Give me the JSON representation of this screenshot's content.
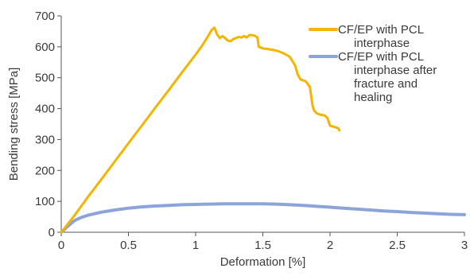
{
  "chart_data": {
    "type": "line",
    "xlabel": "Deformation [%]",
    "ylabel": "Bending stress [MPa]",
    "xlim": [
      0,
      3
    ],
    "ylim": [
      0,
      700
    ],
    "x_ticks": [
      0,
      0.5,
      1,
      1.5,
      2,
      2.5,
      3
    ],
    "x_tick_labels": [
      "0",
      "0.5",
      "1",
      "1.5",
      "2",
      "2.5",
      "3"
    ],
    "y_ticks": [
      0,
      100,
      200,
      300,
      400,
      500,
      600,
      700
    ],
    "y_tick_labels": [
      "0",
      "100",
      "200",
      "300",
      "400",
      "500",
      "600",
      "700"
    ],
    "grid": false,
    "legend_position": "top-right",
    "series": [
      {
        "name": "CF/EP with PCL interphase",
        "legend_lines": [
          "CF/EP with PCL",
          "interphase"
        ],
        "color": "#f4b400",
        "points": [
          [
            0,
            0
          ],
          [
            0.1,
            55
          ],
          [
            0.2,
            115
          ],
          [
            0.3,
            172
          ],
          [
            0.4,
            230
          ],
          [
            0.5,
            288
          ],
          [
            0.6,
            345
          ],
          [
            0.7,
            403
          ],
          [
            0.8,
            460
          ],
          [
            0.9,
            518
          ],
          [
            1.0,
            575
          ],
          [
            1.05,
            605
          ],
          [
            1.1,
            640
          ],
          [
            1.12,
            655
          ],
          [
            1.14,
            662
          ],
          [
            1.16,
            640
          ],
          [
            1.18,
            628
          ],
          [
            1.2,
            635
          ],
          [
            1.22,
            628
          ],
          [
            1.24,
            620
          ],
          [
            1.26,
            618
          ],
          [
            1.28,
            625
          ],
          [
            1.3,
            628
          ],
          [
            1.32,
            632
          ],
          [
            1.34,
            630
          ],
          [
            1.36,
            635
          ],
          [
            1.38,
            630
          ],
          [
            1.4,
            638
          ],
          [
            1.42,
            638
          ],
          [
            1.44,
            636
          ],
          [
            1.46,
            630
          ],
          [
            1.47,
            600
          ],
          [
            1.5,
            595
          ],
          [
            1.55,
            592
          ],
          [
            1.6,
            588
          ],
          [
            1.65,
            580
          ],
          [
            1.7,
            568
          ],
          [
            1.74,
            540
          ],
          [
            1.76,
            510
          ],
          [
            1.78,
            495
          ],
          [
            1.82,
            488
          ],
          [
            1.85,
            470
          ],
          [
            1.86,
            440
          ],
          [
            1.87,
            410
          ],
          [
            1.88,
            395
          ],
          [
            1.9,
            385
          ],
          [
            1.93,
            380
          ],
          [
            1.96,
            378
          ],
          [
            1.98,
            370
          ],
          [
            2.0,
            345
          ],
          [
            2.02,
            342
          ],
          [
            2.04,
            340
          ],
          [
            2.06,
            337
          ],
          [
            2.07,
            330
          ]
        ]
      },
      {
        "name": "CF/EP with PCL interphase after fracture and healing",
        "legend_lines": [
          "CF/EP with PCL",
          "interphase after",
          "fracture and",
          "healing"
        ],
        "color": "#8ca4d9",
        "points": [
          [
            0,
            0
          ],
          [
            0.05,
            20
          ],
          [
            0.1,
            38
          ],
          [
            0.15,
            48
          ],
          [
            0.2,
            55
          ],
          [
            0.3,
            65
          ],
          [
            0.4,
            72
          ],
          [
            0.5,
            78
          ],
          [
            0.6,
            82
          ],
          [
            0.7,
            85
          ],
          [
            0.8,
            87
          ],
          [
            0.9,
            89
          ],
          [
            1.0,
            90
          ],
          [
            1.1,
            91
          ],
          [
            1.2,
            92
          ],
          [
            1.3,
            92
          ],
          [
            1.4,
            92
          ],
          [
            1.5,
            92
          ],
          [
            1.6,
            91
          ],
          [
            1.7,
            89
          ],
          [
            1.8,
            87
          ],
          [
            1.9,
            84
          ],
          [
            2.0,
            81
          ],
          [
            2.1,
            78
          ],
          [
            2.2,
            75
          ],
          [
            2.3,
            72
          ],
          [
            2.4,
            69
          ],
          [
            2.5,
            67
          ],
          [
            2.6,
            64
          ],
          [
            2.7,
            62
          ],
          [
            2.8,
            60
          ],
          [
            2.9,
            58
          ],
          [
            3.0,
            57
          ]
        ]
      }
    ]
  }
}
